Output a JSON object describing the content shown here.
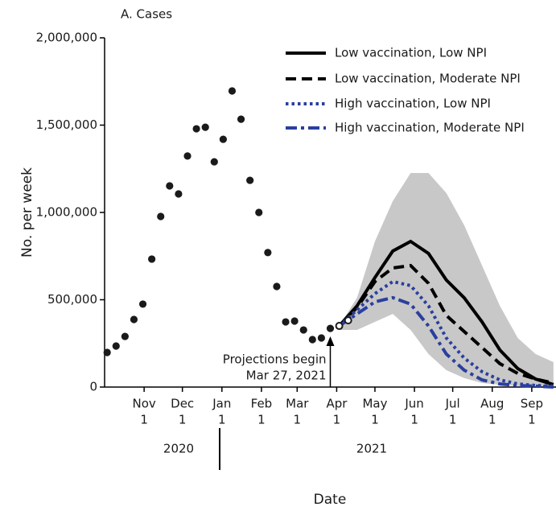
{
  "chart_data": {
    "type": "line",
    "panel_label": "A. Cases",
    "ylabel": "No. per week",
    "xlabel": "Date",
    "ylim": [
      0,
      2000000
    ],
    "yticks": [
      0,
      {
        "value": 500000,
        "label": "500,000"
      },
      {
        "value": 1000000,
        "label": "1,000,000"
      },
      {
        "value": 1500000,
        "label": "1,500,000"
      },
      {
        "value": 2000000,
        "label": "2,000,000"
      }
    ],
    "xlim": [
      "2020-10-01",
      "2021-09-20"
    ],
    "xticks": [
      {
        "value": "2020-11-01",
        "label": [
          "Nov",
          "1"
        ]
      },
      {
        "value": "2020-12-01",
        "label": [
          "Dec",
          "1"
        ]
      },
      {
        "value": "2021-01-01",
        "label": [
          "Jan",
          "1"
        ]
      },
      {
        "value": "2021-02-01",
        "label": [
          "Feb",
          "1"
        ]
      },
      {
        "value": "2021-03-01",
        "label": [
          "Mar",
          "1"
        ]
      },
      {
        "value": "2021-04-01",
        "label": [
          "Apr",
          "1"
        ]
      },
      {
        "value": "2021-05-01",
        "label": [
          "May",
          "1"
        ]
      },
      {
        "value": "2021-06-01",
        "label": [
          "Jun",
          "1"
        ]
      },
      {
        "value": "2021-07-01",
        "label": [
          "Jul",
          "1"
        ]
      },
      {
        "value": "2021-08-01",
        "label": [
          "Aug",
          "1"
        ]
      },
      {
        "value": "2021-09-01",
        "label": [
          "Sep",
          "1"
        ]
      }
    ],
    "years": [
      "2020",
      "2021"
    ],
    "annotation": [
      "Projections begin",
      "Mar 27, 2021"
    ],
    "annotation_x": "2021-03-27",
    "observed": {
      "color": "#1a1a1a",
      "x": [
        "2020-10-03",
        "2020-10-10",
        "2020-10-17",
        "2020-10-24",
        "2020-10-31",
        "2020-11-07",
        "2020-11-14",
        "2020-11-21",
        "2020-11-28",
        "2020-12-05",
        "2020-12-12",
        "2020-12-19",
        "2020-12-26",
        "2021-01-02",
        "2021-01-09",
        "2021-01-16",
        "2021-01-23",
        "2021-01-30",
        "2021-02-06",
        "2021-02-13",
        "2021-02-20",
        "2021-02-27",
        "2021-03-06",
        "2021-03-13",
        "2021-03-20",
        "2021-03-27"
      ],
      "values": [
        198000,
        235000,
        290000,
        387000,
        475000,
        733000,
        977000,
        1152000,
        1106000,
        1323000,
        1479000,
        1488000,
        1290000,
        1419000,
        1696000,
        1534000,
        1184000,
        1000000,
        770000,
        576000,
        373000,
        378000,
        327000,
        272000,
        281000,
        336000
      ]
    },
    "recent": {
      "color": "#1a1a1a",
      "x": [
        "2021-04-03",
        "2021-04-10"
      ],
      "values": [
        350000,
        382000
      ]
    },
    "projection_x": [
      "2021-04-03",
      "2021-04-17",
      "2021-05-01",
      "2021-05-15",
      "2021-05-29",
      "2021-06-12",
      "2021-06-26",
      "2021-07-10",
      "2021-07-24",
      "2021-08-07",
      "2021-08-21",
      "2021-09-04",
      "2021-09-18"
    ],
    "band": {
      "color": "#c8c8c8",
      "upper": [
        350000,
        512000,
        834000,
        1065000,
        1226000,
        1226000,
        1111000,
        927000,
        696000,
        465000,
        281000,
        189000,
        143000
      ],
      "lower": [
        327000,
        327000,
        373000,
        419000,
        327000,
        189000,
        97000,
        51000,
        23000,
        14000,
        5000,
        0,
        0
      ]
    },
    "series": [
      {
        "name": "Low vaccination, Low NPI",
        "color": "#000000",
        "style": "solid",
        "values": [
          350000,
          465000,
          627000,
          779000,
          834000,
          765000,
          613000,
          511000,
          373000,
          212000,
          106000,
          46000,
          14000
        ]
      },
      {
        "name": "Low vaccination, Moderate NPI",
        "color": "#000000",
        "style": "dashed",
        "values": [
          350000,
          456000,
          604000,
          682000,
          696000,
          594000,
          410000,
          318000,
          226000,
          134000,
          78000,
          46000,
          23000
        ]
      },
      {
        "name": "High vaccination, Low NPI",
        "color": "#2a3f9e",
        "style": "dotted",
        "values": [
          350000,
          442000,
          535000,
          604000,
          581000,
          465000,
          281000,
          166000,
          88000,
          41000,
          18000,
          9000,
          5000
        ]
      },
      {
        "name": "High vaccination, Moderate NPI",
        "color": "#2a3f9e",
        "style": "dashdot",
        "values": [
          350000,
          419000,
          488000,
          512000,
          475000,
          350000,
          189000,
          97000,
          41000,
          18000,
          9000,
          5000,
          0
        ]
      }
    ]
  }
}
